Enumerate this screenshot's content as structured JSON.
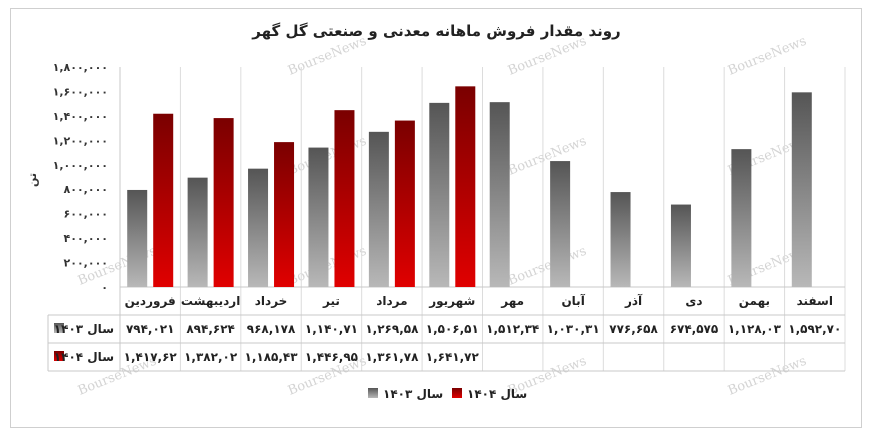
{
  "title": "روند مقدار فروش ماهانه معدنی و صنعتی گل گهر",
  "watermark": "BourseNews",
  "colors": {
    "gray_dark": "#555555",
    "gray_light": "#b8b8b8",
    "red_dark": "#7a0000",
    "red_light": "#e00000"
  },
  "chart_data": {
    "type": "bar",
    "ylabel": "تن",
    "ylim": [
      0,
      1800000
    ],
    "yticks": [
      "۰",
      "۲۰۰,۰۰۰",
      "۴۰۰,۰۰۰",
      "۶۰۰,۰۰۰",
      "۸۰۰,۰۰۰",
      "۱,۰۰۰,۰۰۰",
      "۱,۲۰۰,۰۰۰",
      "۱,۴۰۰,۰۰۰",
      "۱,۶۰۰,۰۰۰",
      "۱,۸۰۰,۰۰۰"
    ],
    "ytick_values": [
      0,
      200000,
      400000,
      600000,
      800000,
      1000000,
      1200000,
      1400000,
      1600000,
      1800000
    ],
    "grid": false,
    "legend": "bottom",
    "categories": [
      "فروردین",
      "اردیبهشت",
      "خرداد",
      "تیر",
      "مرداد",
      "شهریور",
      "مهر",
      "آبان",
      "آذر",
      "دی",
      "بهمن",
      "اسفند"
    ],
    "series": [
      {
        "name": "سال ۱۴۰۳",
        "values": [
          794021,
          894624,
          968178,
          1140710,
          1269580,
          1506510,
          1512340,
          1030310,
          776658,
          674575,
          1128030,
          1592700
        ],
        "labels": [
          "۷۹۴,۰۲۱",
          "۸۹۴,۶۲۴",
          "۹۶۸,۱۷۸",
          "۱,۱۴۰,۷۱",
          "۱,۲۶۹,۵۸",
          "۱,۵۰۶,۵۱",
          "۱,۵۱۲,۳۴",
          "۱,۰۳۰,۳۱",
          "۷۷۶,۶۵۸",
          "۶۷۴,۵۷۵",
          "۱,۱۲۸,۰۳",
          "۱,۵۹۲,۷۰"
        ]
      },
      {
        "name": "سال ۱۴۰۴",
        "values": [
          1417620,
          1382020,
          1185430,
          1446950,
          1361780,
          1641720,
          null,
          null,
          null,
          null,
          null,
          null
        ],
        "labels": [
          "۱,۴۱۷,۶۲",
          "۱,۳۸۲,۰۲",
          "۱,۱۸۵,۴۳",
          "۱,۴۴۶,۹۵",
          "۱,۳۶۱,۷۸",
          "۱,۶۴۱,۷۲",
          "",
          "",
          "",
          "",
          "",
          ""
        ]
      }
    ]
  }
}
